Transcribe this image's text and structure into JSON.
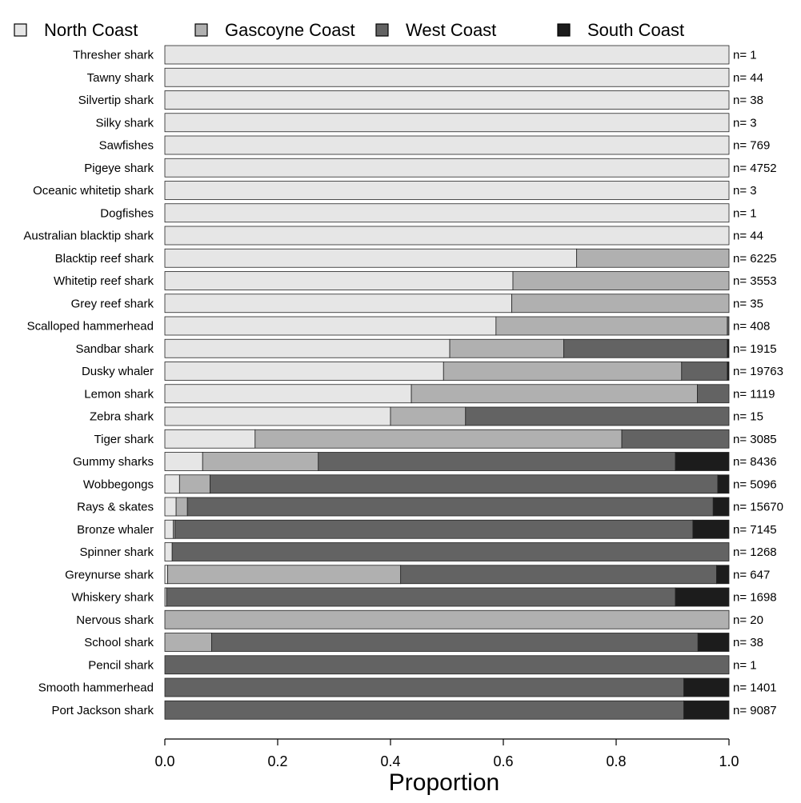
{
  "chart_data": {
    "type": "bar",
    "orientation": "horizontal",
    "stacked": true,
    "xlabel": "Proportion",
    "xlim": [
      0,
      1
    ],
    "xticks": [
      "0.0",
      "0.2",
      "0.4",
      "0.6",
      "0.8",
      "1.0"
    ],
    "legend_position": "top",
    "series": [
      {
        "name": "North Coast",
        "color": "#e6e6e6"
      },
      {
        "name": "Gascoyne Coast",
        "color": "#b0b0b0"
      },
      {
        "name": "West Coast",
        "color": "#636363"
      },
      {
        "name": "South Coast",
        "color": "#1c1c1c"
      }
    ],
    "categories": [
      {
        "label": "Thresher shark",
        "n": "n= 1",
        "values": [
          1.0,
          0,
          0,
          0
        ]
      },
      {
        "label": "Tawny shark",
        "n": "n= 44",
        "values": [
          1.0,
          0,
          0,
          0
        ]
      },
      {
        "label": "Silvertip shark",
        "n": "n= 38",
        "values": [
          1.0,
          0,
          0,
          0
        ]
      },
      {
        "label": "Silky shark",
        "n": "n= 3",
        "values": [
          1.0,
          0,
          0,
          0
        ]
      },
      {
        "label": "Sawfishes",
        "n": "n= 769",
        "values": [
          1.0,
          0,
          0,
          0
        ]
      },
      {
        "label": "Pigeye shark",
        "n": "n= 4752",
        "values": [
          1.0,
          0,
          0,
          0
        ]
      },
      {
        "label": "Oceanic whitetip shark",
        "n": "n= 3",
        "values": [
          1.0,
          0,
          0,
          0
        ]
      },
      {
        "label": "Dogfishes",
        "n": "n= 1",
        "values": [
          1.0,
          0,
          0,
          0
        ]
      },
      {
        "label": "Australian blacktip shark",
        "n": "n= 44",
        "values": [
          1.0,
          0,
          0,
          0
        ]
      },
      {
        "label": "Blacktip reef shark",
        "n": "n= 6225",
        "values": [
          0.73,
          0.27,
          0,
          0
        ]
      },
      {
        "label": "Whitetip reef shark",
        "n": "n= 3553",
        "values": [
          0.617,
          0.383,
          0,
          0
        ]
      },
      {
        "label": "Grey reef shark",
        "n": "n= 35",
        "values": [
          0.615,
          0.385,
          0,
          0
        ]
      },
      {
        "label": "Scalloped hammerhead",
        "n": "n= 408",
        "values": [
          0.587,
          0.41,
          0.003,
          0
        ]
      },
      {
        "label": "Sandbar shark",
        "n": "n= 1915",
        "values": [
          0.505,
          0.202,
          0.29,
          0.003
        ]
      },
      {
        "label": "Dusky whaler",
        "n": "n= 19763",
        "values": [
          0.494,
          0.422,
          0.081,
          0.003
        ]
      },
      {
        "label": "Lemon shark",
        "n": "n= 1119",
        "values": [
          0.437,
          0.507,
          0.056,
          0
        ]
      },
      {
        "label": "Zebra shark",
        "n": "n= 15",
        "values": [
          0.4,
          0.133,
          0.467,
          0
        ]
      },
      {
        "label": "Tiger shark",
        "n": "n= 3085",
        "values": [
          0.16,
          0.65,
          0.19,
          0
        ]
      },
      {
        "label": "Gummy sharks",
        "n": "n= 8436",
        "values": [
          0.067,
          0.205,
          0.633,
          0.095
        ]
      },
      {
        "label": "Wobbegongs",
        "n": "n= 5096",
        "values": [
          0.026,
          0.054,
          0.9,
          0.02
        ]
      },
      {
        "label": "Rays & skates",
        "n": "n= 15670",
        "values": [
          0.02,
          0.02,
          0.932,
          0.028
        ]
      },
      {
        "label": "Bronze whaler",
        "n": "n= 7145",
        "values": [
          0.015,
          0.003,
          0.918,
          0.064
        ]
      },
      {
        "label": "Spinner shark",
        "n": "n= 1268",
        "values": [
          0.013,
          0,
          0.987,
          0
        ]
      },
      {
        "label": "Greynurse shark",
        "n": "n= 647",
        "values": [
          0.005,
          0.413,
          0.56,
          0.022
        ]
      },
      {
        "label": "Whiskery shark",
        "n": "n= 1698",
        "values": [
          0.003,
          0,
          0.902,
          0.095
        ]
      },
      {
        "label": "Nervous shark",
        "n": "n= 20",
        "values": [
          0,
          1.0,
          0,
          0
        ]
      },
      {
        "label": "School shark",
        "n": "n= 38",
        "values": [
          0,
          0.083,
          0.862,
          0.055
        ]
      },
      {
        "label": "Pencil shark",
        "n": "n= 1",
        "values": [
          0,
          0,
          1.0,
          0
        ]
      },
      {
        "label": "Smooth hammerhead",
        "n": "n= 1401",
        "values": [
          0,
          0,
          0.92,
          0.08
        ]
      },
      {
        "label": "Port Jackson shark",
        "n": "n= 9087",
        "values": [
          0,
          0,
          0.92,
          0.08
        ]
      }
    ]
  }
}
